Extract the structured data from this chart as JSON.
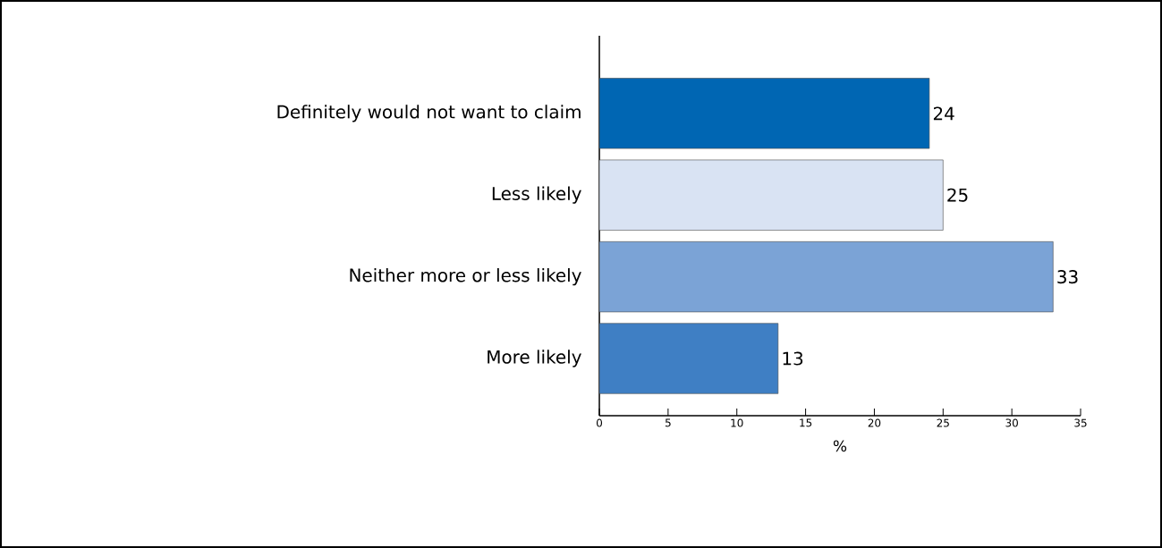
{
  "chart_data": {
    "type": "bar",
    "orientation": "horizontal",
    "categories": [
      "Definitely would not want to claim",
      "Less likely",
      "Neither more or less likely",
      "More likely"
    ],
    "values": [
      24,
      25,
      33,
      13
    ],
    "colors": [
      "#0066b3",
      "#d9e3f3",
      "#7ba3d6",
      "#3f7fc4"
    ],
    "xlim": [
      0,
      35
    ],
    "xticks": [
      0,
      5,
      10,
      15,
      20,
      25,
      30,
      35
    ],
    "xlabel": "%",
    "data_labels": true
  }
}
